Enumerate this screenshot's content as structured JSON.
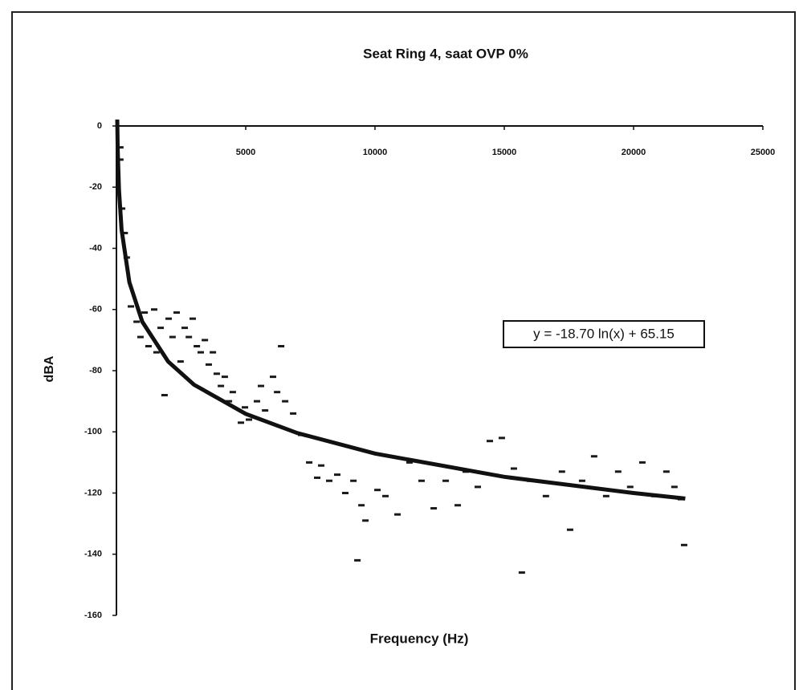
{
  "chart_data": {
    "type": "scatter",
    "title": "Seat Ring 4,  saat OVP 0%",
    "x_label": "Frequency (Hz)",
    "y_label": "dBA",
    "xlim": [
      0,
      25000
    ],
    "ylim": [
      -160,
      0
    ],
    "xticks": [
      5000,
      10000,
      15000,
      20000,
      25000
    ],
    "yticks": [
      0,
      -20,
      -40,
      -60,
      -80,
      -100,
      -120,
      -140,
      -160
    ],
    "series": [
      {
        "color": "#1a1a1a",
        "x": [
          150,
          150,
          220,
          320,
          400,
          560,
          780,
          930,
          1090,
          1240,
          1460,
          1550,
          1710,
          1860,
          2020,
          2170,
          2330,
          2480,
          2640,
          2800,
          2950,
          3110,
          3260,
          3420,
          3570,
          3730,
          3880,
          4040,
          4190,
          4350,
          4500,
          4815,
          4970,
          5125,
          5435,
          5590,
          5750,
          6055,
          6215,
          6370,
          6525,
          6835,
          7145,
          7455,
          7765,
          7920,
          8230,
          8540,
          8850,
          9165,
          9320,
          9475,
          9630,
          10095,
          10405,
          10870,
          11335,
          11800,
          12270,
          12735,
          13200,
          13510,
          13975,
          14440,
          14905,
          15370,
          15680,
          15990,
          16610,
          17230,
          17545,
          18010,
          18475,
          18940,
          19405,
          19870,
          20340,
          20805,
          21270,
          21580,
          21830,
          21955
        ],
        "values": [
          -7,
          -11,
          -27,
          -35,
          -43,
          -59,
          -64,
          -69,
          -61,
          -72,
          -60,
          -74,
          -66,
          -88,
          -63,
          -69,
          -61,
          -77,
          -66,
          -69,
          -63,
          -72,
          -74,
          -70,
          -78,
          -74,
          -81,
          -85,
          -82,
          -90,
          -87,
          -97,
          -92,
          -96,
          -90,
          -85,
          -93,
          -82,
          -87,
          -72,
          -90,
          -94,
          -101,
          -110,
          -115,
          -111,
          -116,
          -114,
          -120,
          -116,
          -142,
          -124,
          -129,
          -119,
          -121,
          -127,
          -110,
          -116,
          -125,
          -116,
          -124,
          -113,
          -118,
          -103,
          -102,
          -112,
          -146,
          -116,
          -121,
          -113,
          -132,
          -116,
          -108,
          -121,
          -113,
          -118,
          -110,
          -121,
          -113,
          -118,
          -122,
          -137
        ]
      }
    ],
    "trendline": {
      "label": "y = -18.70 ln(x) + 65.15",
      "color": "#111111",
      "x": [
        20,
        50,
        100,
        200,
        500,
        1000,
        2000,
        3000,
        5000,
        7000,
        10000,
        15000,
        20000,
        22000
      ],
      "values": [
        9.1,
        -8.0,
        -21.0,
        -33.9,
        -51.1,
        -64.0,
        -77.0,
        -84.6,
        -94.1,
        -100.4,
        -107.1,
        -114.7,
        -120.0,
        -121.8
      ]
    }
  }
}
